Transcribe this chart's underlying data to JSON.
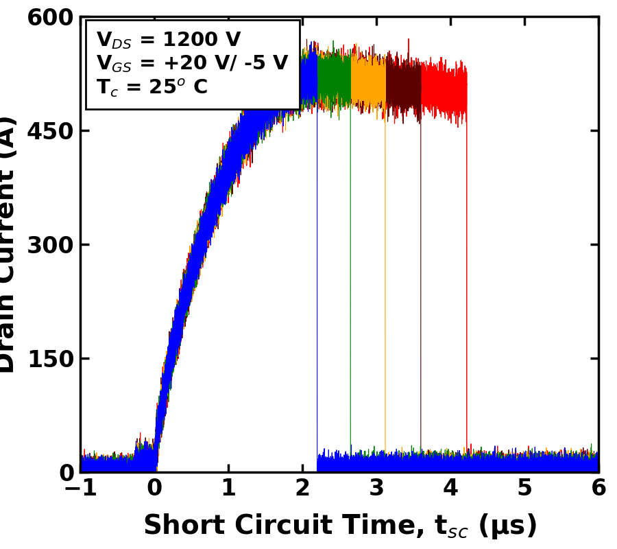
{
  "title": "",
  "xlabel": "Short Circuit Time, t$_{sc}$ (μs)",
  "ylabel": "Drain Current (A)",
  "xlim": [
    -1,
    6
  ],
  "ylim": [
    0,
    600
  ],
  "xticks": [
    -1,
    0,
    1,
    2,
    3,
    4,
    5,
    6
  ],
  "yticks": [
    0,
    150,
    300,
    450,
    600
  ],
  "annotation_lines": [
    "V$_{DS}$ = 1200 V",
    "V$_{GS}$ = +20 V/ -5 V",
    "T$_c$ = 25$^o$ C"
  ],
  "curves": [
    {
      "color": "#0000FF",
      "cutoff_time": 2.2
    },
    {
      "color": "#008000",
      "cutoff_time": 2.65
    },
    {
      "color": "#FFA500",
      "cutoff_time": 3.12
    },
    {
      "color": "#5C0000",
      "cutoff_time": 3.6
    },
    {
      "color": "#FF0000",
      "cutoff_time": 4.22
    }
  ],
  "peak_current": 510,
  "peak_time": 2.3,
  "rise_start": 0.0,
  "noise_amplitude": 14,
  "background_color": "#ffffff"
}
